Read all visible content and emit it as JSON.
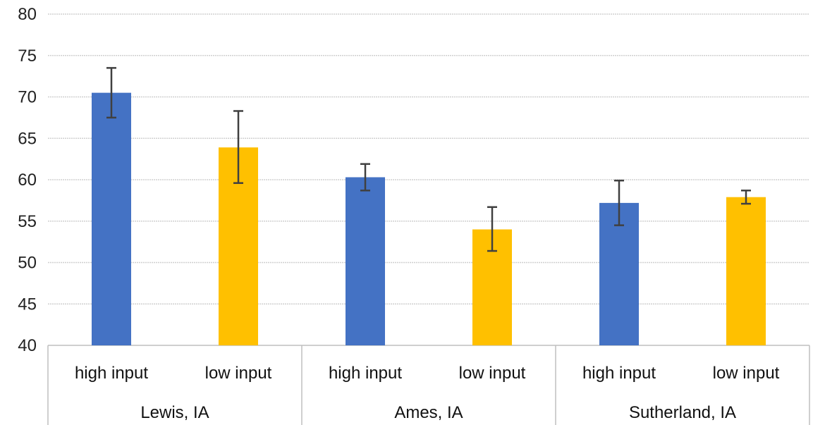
{
  "chart_data": {
    "type": "bar",
    "title": "",
    "xlabel": "",
    "ylabel": "",
    "ylim": [
      40,
      80
    ],
    "yticks": [
      40,
      45,
      50,
      55,
      60,
      65,
      70,
      75,
      80
    ],
    "grid": true,
    "groups": [
      "Lewis, IA",
      "Ames, IA",
      "Sutherland, IA"
    ],
    "categories": [
      "high input",
      "low input",
      "high input",
      "low input",
      "high input",
      "low input"
    ],
    "values": [
      70.5,
      63.9,
      60.3,
      54.0,
      57.2,
      57.9
    ],
    "error_low": [
      67.5,
      59.6,
      58.7,
      51.4,
      54.5,
      57.1
    ],
    "error_high": [
      73.5,
      68.3,
      61.9,
      56.7,
      59.9,
      58.7
    ],
    "colors": {
      "high input": "#4472c4",
      "low input": "#ffc000",
      "error_bar": "#404040",
      "grid": "#d0d0d0",
      "axis": "#bfbfbf"
    }
  }
}
